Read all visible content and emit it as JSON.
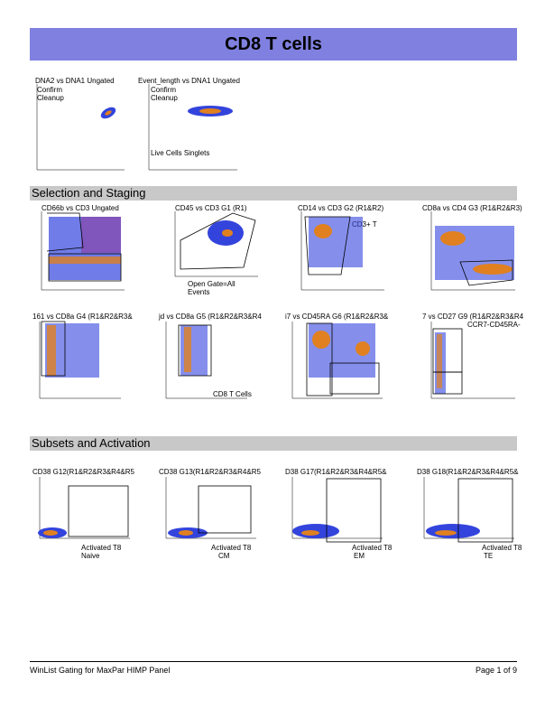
{
  "page": {
    "title": "CD8 T cells",
    "footer_left": "WinList Gating for MaxPar HIMP Panel",
    "footer_right": "Page 1 of 9"
  },
  "sections": {
    "selection": "Selection and Staging",
    "subsets": "Subsets and Activation"
  },
  "plots": {
    "p1": {
      "label": "DNA2 vs DNA1  Ungated",
      "annot": [
        "Confirm",
        "Cleanup"
      ]
    },
    "p2": {
      "label": "Event_length vs DNA1  Ungated",
      "annot": [
        "Confirm",
        "Cleanup",
        "Live Cells  Singlets"
      ]
    },
    "s1": {
      "label": "CD66b vs CD3  Ungated"
    },
    "s2": {
      "label": "CD45 vs CD3  G1 (R1)",
      "annot": [
        "Open Gate=All",
        "Events"
      ]
    },
    "s3": {
      "label": "CD14 vs CD3  G2 (R1&R2)",
      "annot": [
        "CD3+ T"
      ]
    },
    "s4": {
      "label": "CD8a vs CD4  G3 (R1&R2&R3)"
    },
    "s5": {
      "label": "161 vs CD8a  G4 (R1&R2&R3&"
    },
    "s6": {
      "label": "jd vs CD8a  G5 (R1&R2&R3&R4",
      "annot": [
        "CD8 T Cells"
      ]
    },
    "s7": {
      "label": "i7 vs CD45RA  G6 (R1&R2&R3&"
    },
    "s8": {
      "label": "7 vs CD27  G9 (R1&R2&R3&R4",
      "annot": [
        "CCR7-CD45RA-"
      ]
    },
    "a1": {
      "label": "CD38  G12(R1&R2&R3&R4&R5",
      "annot": [
        "Activated T8",
        "Naive"
      ]
    },
    "a2": {
      "label": "CD38  G13(R1&R2&R3&R4&R5",
      "annot": [
        "Activated T8",
        "CM"
      ]
    },
    "a3": {
      "label": "D38  G17(R1&R2&R3&R4&R5&",
      "annot": [
        "Activated T8",
        "EM"
      ]
    },
    "a4": {
      "label": "D38  G18(R1&R2&R3&R4&R5&",
      "annot": [
        "Activated T8",
        "TE"
      ]
    }
  },
  "colors": {
    "title_bar": "#8080e0",
    "section_bar": "#c8c8c8",
    "dots": "#2233dd",
    "hot": "#e08020"
  }
}
